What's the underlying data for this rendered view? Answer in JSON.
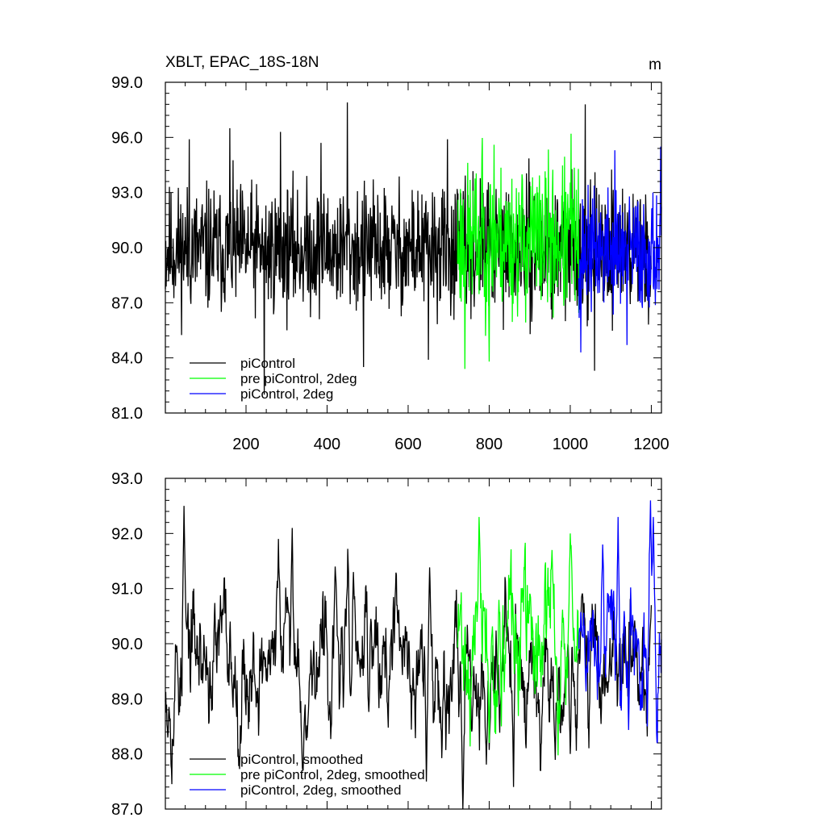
{
  "title": "XBLT, EPAC_18S-18N",
  "units": "m",
  "chart_data": [
    {
      "type": "line",
      "name": "raw",
      "xlim": [
        1,
        1225
      ],
      "ylim": [
        81.0,
        99.0
      ],
      "xticks": [
        200,
        400,
        600,
        800,
        1000,
        1200
      ],
      "yticks": [
        "81.0",
        "84.0",
        "87.0",
        "90.0",
        "93.0",
        "96.0",
        "99.0"
      ],
      "series": [
        {
          "name": "piControl",
          "color": "#000000",
          "x_start": 1,
          "x_end": 1200,
          "mean": 89.9,
          "sd": 1.7,
          "seed": 11,
          "smooth": false,
          "peaks": [
            [
              450,
              97.9
            ],
            [
              1037,
              97.8
            ],
            [
              160,
              96.5
            ],
            [
              285,
              96.3
            ],
            [
              60,
              95.9
            ],
            [
              385,
              95.7
            ],
            [
              697,
              95.9
            ],
            [
              245,
              82.0
            ],
            [
              1060,
              83.3
            ],
            [
              650,
              83.9
            ],
            [
              490,
              83.5
            ]
          ]
        },
        {
          "name": "pre piControl, 2deg",
          "color": "#00ff00",
          "x_start": 722,
          "x_end": 1021,
          "mean": 90.4,
          "sd": 2.0,
          "seed": 23,
          "smooth": false,
          "peaks": [
            [
              1002,
              96.2
            ],
            [
              782,
              94.9
            ],
            [
              812,
              95.6
            ],
            [
              740,
              83.4
            ],
            [
              800,
              83.8
            ]
          ]
        },
        {
          "name": "piControl, 2deg",
          "color": "#0000ff",
          "x_start": 1021,
          "x_end": 1225,
          "mean": 89.8,
          "sd": 1.6,
          "seed": 37,
          "smooth": false,
          "peaks": [
            [
              1223,
              95.5
            ],
            [
              1110,
              95.3
            ],
            [
              1026,
              84.3
            ],
            [
              1140,
              84.7
            ]
          ]
        }
      ],
      "legend": {
        "placement": "bottom-left",
        "entries": [
          "piControl",
          "pre piControl, 2deg",
          "piControl, 2deg"
        ]
      }
    },
    {
      "type": "line",
      "name": "smoothed",
      "xlim": [
        1,
        1225
      ],
      "ylim": [
        87.0,
        93.0
      ],
      "xticks": [
        200,
        400,
        600,
        800,
        1000,
        1200
      ],
      "yticks": [
        "87.0",
        "88.0",
        "89.0",
        "90.0",
        "91.0",
        "92.0",
        "93.0"
      ],
      "series": [
        {
          "name": "piControl, smoothed",
          "color": "#000000",
          "x_start": 1,
          "x_end": 1200,
          "mean": 89.7,
          "sd": 0.65,
          "seed": 53,
          "smooth": true,
          "peaks": [
            [
              47,
              92.5
            ],
            [
              280,
              91.9
            ],
            [
              314,
              92.1
            ],
            [
              420,
              91.4
            ],
            [
              465,
              91.3
            ],
            [
              735,
              87.0
            ],
            [
              860,
              87.4
            ],
            [
              340,
              87.7
            ],
            [
              645,
              87.5
            ],
            [
              1200,
              90.7
            ],
            [
              1000,
              88.0
            ]
          ]
        },
        {
          "name": "pre piControl, 2deg, smoothed",
          "color": "#00ff00",
          "x_start": 722,
          "x_end": 1021,
          "mean": 90.0,
          "sd": 0.75,
          "seed": 71,
          "smooth": true,
          "peaks": [
            [
              775,
              92.3
            ],
            [
              830,
              92.5
            ],
            [
              1000,
              92.0
            ],
            [
              955,
              91.7
            ],
            [
              800,
              88.2
            ],
            [
              830,
              88.5
            ]
          ]
        },
        {
          "name": "piControl, 2deg, smoothed",
          "color": "#0000ff",
          "x_start": 1021,
          "x_end": 1225,
          "mean": 90.0,
          "sd": 0.7,
          "seed": 89,
          "smooth": true,
          "peaks": [
            [
              1198,
              92.6
            ],
            [
              1118,
              92.3
            ],
            [
              1205,
              92.3
            ],
            [
              1080,
              91.8
            ],
            [
              1190,
              88.5
            ],
            [
              1220,
              90.2
            ]
          ]
        }
      ],
      "legend": {
        "placement": "bottom-left",
        "entries": [
          "piControl, smoothed",
          "pre piControl, 2deg, smoothed",
          "piControl, 2deg, smoothed"
        ]
      }
    }
  ]
}
